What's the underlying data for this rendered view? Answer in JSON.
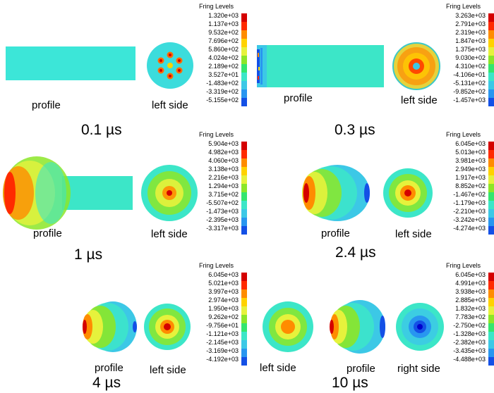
{
  "legend_colors": [
    "#d40000",
    "#ff2a00",
    "#ff8c00",
    "#ffd200",
    "#e6f23c",
    "#8ce628",
    "#33e66e",
    "#3ce6c8",
    "#3cc8e6",
    "#2896f0",
    "#1450e6",
    "#0000cd"
  ],
  "panels": [
    {
      "id": "t01",
      "time": "0.1 µs",
      "labels": [
        "profile",
        "left side"
      ],
      "legend_title": "Fring Levels",
      "legend_values": [
        "1.320e+03",
        "1.137e+03",
        "9.532e+02",
        "7.696e+02",
        "5.860e+02",
        "4.024e+02",
        "2.189e+02",
        "3.527e+01",
        "-1.483e+02",
        "-3.319e+02",
        "-5.155e+02"
      ]
    },
    {
      "id": "t03",
      "time": "0.3 µs",
      "labels": [
        "profile",
        "left side"
      ],
      "legend_title": "Fring Levels",
      "legend_values": [
        "3.263e+03",
        "2.791e+03",
        "2.319e+03",
        "1.847e+03",
        "1.375e+03",
        "9.030e+02",
        "4.310e+02",
        "-4.106e+01",
        "-5.131e+02",
        "-9.852e+02",
        "-1.457e+03"
      ]
    },
    {
      "id": "t1",
      "time": "1 µs",
      "labels": [
        "profile",
        "left side"
      ],
      "legend_title": "Fring Levels",
      "legend_values": [
        "5.904e+03",
        "4.982e+03",
        "4.060e+03",
        "3.138e+03",
        "2.216e+03",
        "1.294e+03",
        "3.715e+02",
        "-5.507e+02",
        "-1.473e+03",
        "-2.395e+03",
        "-3.317e+03"
      ]
    },
    {
      "id": "t24",
      "time": "2.4 µs",
      "labels": [
        "profile",
        "left side"
      ],
      "legend_title": "Fring Levels",
      "legend_values": [
        "6.045e+03",
        "5.013e+03",
        "3.981e+03",
        "2.949e+03",
        "1.917e+03",
        "8.852e+02",
        "-1.467e+02",
        "-1.179e+03",
        "-2.210e+03",
        "-3.242e+03",
        "-4.274e+03"
      ]
    },
    {
      "id": "t4",
      "time": "4 µs",
      "labels": [
        "profile",
        "left side"
      ],
      "legend_title": "Fring Levels",
      "legend_values": [
        "6.045e+03",
        "5.021e+03",
        "3.997e+03",
        "2.974e+03",
        "1.950e+03",
        "9.262e+02",
        "-9.756e+01",
        "-1.121e+03",
        "-2.145e+03",
        "-3.169e+03",
        "-4.192e+03"
      ]
    },
    {
      "id": "t10",
      "time": "10 µs",
      "labels": [
        "left side",
        "profile",
        "right side"
      ],
      "legend_title": "Fring Levels",
      "legend_values": [
        "6.045e+03",
        "4.991e+03",
        "3.938e+03",
        "2.885e+03",
        "1.832e+03",
        "7.783e+02",
        "-2.750e+02",
        "-1.328e+03",
        "-2.382e+03",
        "-3.435e+03",
        "-4.488e+03"
      ]
    }
  ]
}
